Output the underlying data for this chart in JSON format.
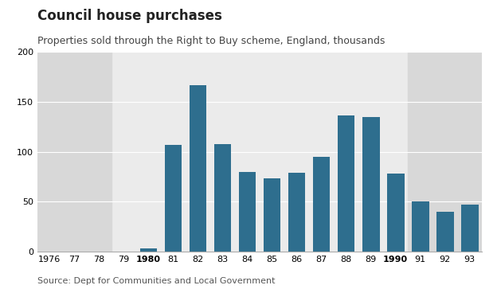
{
  "title": "Council house purchases",
  "subtitle": "Properties sold through the Right to Buy scheme, England, thousands",
  "source": "Source: Dept for Communities and Local Government",
  "years": [
    1976,
    1977,
    1978,
    1979,
    1980,
    1981,
    1982,
    1983,
    1984,
    1985,
    1986,
    1987,
    1988,
    1989,
    1990,
    1991,
    1992,
    1993
  ],
  "values": [
    0,
    0,
    0,
    0,
    3,
    107,
    167,
    108,
    80,
    73,
    79,
    95,
    136,
    135,
    78,
    50,
    40,
    47
  ],
  "bar_color": "#2e6e8e",
  "shade_color_dark": "#d8d8d8",
  "shade_color_light": "#ebebeb",
  "ylim": [
    0,
    200
  ],
  "yticks": [
    0,
    50,
    100,
    150,
    200
  ],
  "title_fontsize": 12,
  "subtitle_fontsize": 9,
  "source_fontsize": 8,
  "tick_fontsize": 8,
  "background_color": "#ffffff",
  "plot_bg_color": "#ebebeb"
}
